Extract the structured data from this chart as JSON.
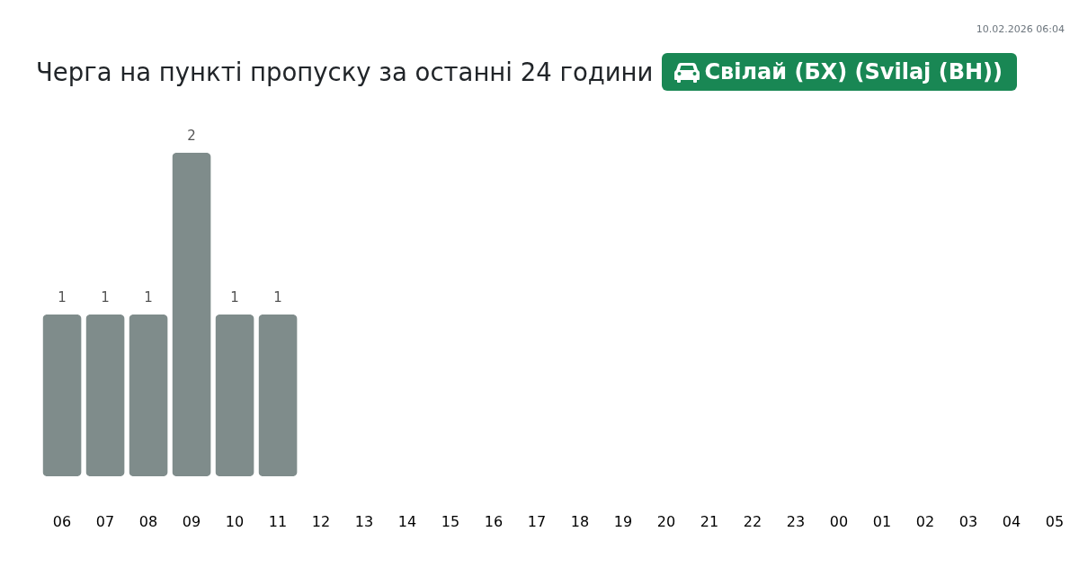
{
  "chart_data": {
    "type": "bar",
    "title": "Черга на пункті пропуску за останні 24 години",
    "subtitle": "Свілай (БХ) (Svilaj (BH))",
    "categories": [
      "06",
      "07",
      "08",
      "09",
      "10",
      "11",
      "12",
      "13",
      "14",
      "15",
      "16",
      "17",
      "18",
      "19",
      "20",
      "21",
      "22",
      "23",
      "00",
      "01",
      "02",
      "03",
      "04",
      "05"
    ],
    "values": [
      1,
      1,
      1,
      2,
      1,
      1,
      null,
      null,
      null,
      null,
      null,
      null,
      null,
      null,
      null,
      null,
      null,
      null,
      null,
      null,
      null,
      null,
      null,
      null
    ],
    "color": "#7f8c8b",
    "data_labels": true,
    "annotations": [
      "10.02.2026 06:04"
    ]
  }
}
